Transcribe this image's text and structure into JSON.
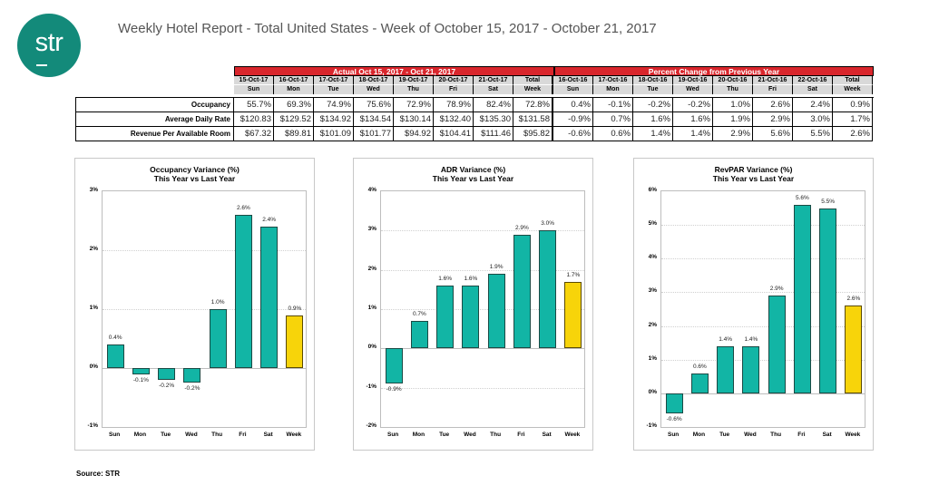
{
  "logo": {
    "text": "str",
    "color": "#138a7a"
  },
  "header": {
    "title": "Weekly Hotel Report - Total United States - Week of October 15, 2017 - October 21, 2017"
  },
  "table": {
    "actual_header": "Actual Oct 15, 2017 - Oct 21, 2017",
    "change_header": "Percent Change from Previous Year",
    "actual_dates": [
      "15-Oct-17",
      "16-Oct-17",
      "17-Oct-17",
      "18-Oct-17",
      "19-Oct-17",
      "20-Oct-17",
      "21-Oct-17",
      "Total"
    ],
    "actual_days": [
      "Sun",
      "Mon",
      "Tue",
      "Wed",
      "Thu",
      "Fri",
      "Sat",
      "Week"
    ],
    "change_dates": [
      "16-Oct-16",
      "17-Oct-16",
      "18-Oct-16",
      "19-Oct-16",
      "20-Oct-16",
      "21-Oct-16",
      "22-Oct-16",
      "Total"
    ],
    "change_days": [
      "Sun",
      "Mon",
      "Tue",
      "Wed",
      "Thu",
      "Fri",
      "Sat",
      "Week"
    ],
    "rows": [
      {
        "label": "Occupancy",
        "actual": [
          "55.7%",
          "69.3%",
          "74.9%",
          "75.6%",
          "72.9%",
          "78.9%",
          "82.4%",
          "72.8%"
        ],
        "change": [
          "0.4%",
          "-0.1%",
          "-0.2%",
          "-0.2%",
          "1.0%",
          "2.6%",
          "2.4%",
          "0.9%"
        ]
      },
      {
        "label": "Average Daily Rate",
        "actual": [
          "$120.83",
          "$129.52",
          "$134.92",
          "$134.54",
          "$130.14",
          "$132.40",
          "$135.30",
          "$131.58"
        ],
        "change": [
          "-0.9%",
          "0.7%",
          "1.6%",
          "1.6%",
          "1.9%",
          "2.9%",
          "3.0%",
          "1.7%"
        ]
      },
      {
        "label": "Revenue Per Available Room",
        "actual": [
          "$67.32",
          "$89.81",
          "$101.09",
          "$101.77",
          "$94.92",
          "$104.41",
          "$111.46",
          "$95.82"
        ],
        "change": [
          "-0.6%",
          "0.6%",
          "1.4%",
          "1.4%",
          "2.9%",
          "5.6%",
          "5.5%",
          "2.6%"
        ]
      }
    ]
  },
  "chart_data": [
    {
      "type": "bar",
      "title": "Occupancy Variance (%)",
      "subtitle": "This Year vs Last Year",
      "categories": [
        "Sun",
        "Mon",
        "Tue",
        "Wed",
        "Thu",
        "Fri",
        "Sat",
        "Week"
      ],
      "values": [
        0.4,
        -0.1,
        -0.2,
        -0.25,
        1.0,
        2.6,
        2.4,
        0.9
      ],
      "labels": [
        "0.4%",
        "-0.1%",
        "-0.2%",
        "-0.2%",
        "1.0%",
        "2.6%",
        "2.4%",
        "0.9%"
      ],
      "yticks": [
        "3%",
        "2%",
        "1%",
        "0%",
        "-1%"
      ],
      "ylim": [
        -1,
        3
      ],
      "xlabel": "",
      "ylabel": "",
      "grid": true,
      "legend": "none",
      "colors": {
        "day": "#12b5a5",
        "week": "#f7d40a"
      }
    },
    {
      "type": "bar",
      "title": "ADR Variance (%)",
      "subtitle": "This Year vs Last Year",
      "categories": [
        "Sun",
        "Mon",
        "Tue",
        "Wed",
        "Thu",
        "Fri",
        "Sat",
        "Week"
      ],
      "values": [
        -0.9,
        0.7,
        1.6,
        1.6,
        1.9,
        2.9,
        3.0,
        1.7
      ],
      "labels": [
        "-0.9%",
        "0.7%",
        "1.6%",
        "1.6%",
        "1.9%",
        "2.9%",
        "3.0%",
        "1.7%"
      ],
      "yticks": [
        "4%",
        "3%",
        "2%",
        "1%",
        "0%",
        "-1%",
        "-2%"
      ],
      "ylim": [
        -2,
        4
      ],
      "xlabel": "",
      "ylabel": "",
      "grid": true,
      "legend": "none",
      "colors": {
        "day": "#12b5a5",
        "week": "#f7d40a"
      }
    },
    {
      "type": "bar",
      "title": "RevPAR Variance (%)",
      "subtitle": "This Year vs Last Year",
      "categories": [
        "Sun",
        "Mon",
        "Tue",
        "Wed",
        "Thu",
        "Fri",
        "Sat",
        "Week"
      ],
      "values": [
        -0.6,
        0.6,
        1.4,
        1.4,
        2.9,
        5.6,
        5.5,
        2.6
      ],
      "labels": [
        "-0.6%",
        "0.6%",
        "1.4%",
        "1.4%",
        "2.9%",
        "5.6%",
        "5.5%",
        "2.6%"
      ],
      "yticks": [
        "6%",
        "5%",
        "4%",
        "3%",
        "2%",
        "1%",
        "0%",
        "-1%"
      ],
      "ylim": [
        -1,
        6
      ],
      "xlabel": "",
      "ylabel": "",
      "grid": true,
      "legend": "none",
      "colors": {
        "day": "#12b5a5",
        "week": "#f7d40a"
      }
    }
  ],
  "footer": {
    "source": "Source: STR"
  }
}
